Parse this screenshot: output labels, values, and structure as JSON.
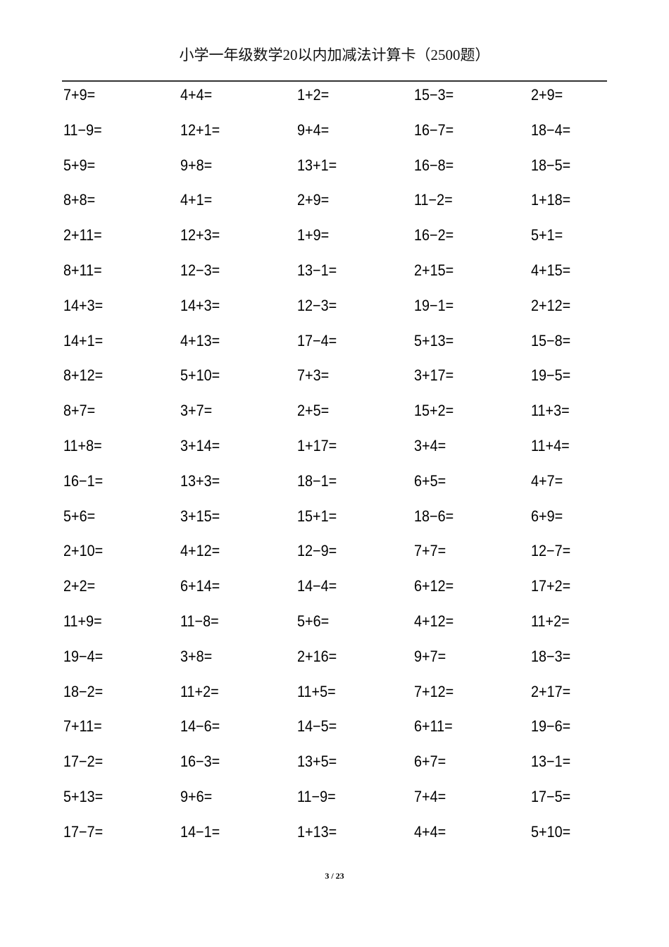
{
  "document": {
    "title": "小学一年级数学20以内加减法计算卡（2500题）",
    "page_indicator": "3 / 23"
  },
  "problems": [
    [
      "7+9=",
      "4+4=",
      "1+2=",
      "15−3=",
      "2+9="
    ],
    [
      "11−9=",
      "12+1=",
      "9+4=",
      "16−7=",
      "18−4="
    ],
    [
      "5+9=",
      "9+8=",
      "13+1=",
      "16−8=",
      "18−5="
    ],
    [
      "8+8=",
      "4+1=",
      "2+9=",
      "11−2=",
      "1+18="
    ],
    [
      "2+11=",
      "12+3=",
      "1+9=",
      "16−2=",
      "5+1="
    ],
    [
      "8+11=",
      "12−3=",
      "13−1=",
      "2+15=",
      "4+15="
    ],
    [
      "14+3=",
      "14+3=",
      "12−3=",
      "19−1=",
      "2+12="
    ],
    [
      "14+1=",
      "4+13=",
      "17−4=",
      "5+13=",
      "15−8="
    ],
    [
      "8+12=",
      "5+10=",
      "7+3=",
      "3+17=",
      "19−5="
    ],
    [
      "8+7=",
      "3+7=",
      "2+5=",
      "15+2=",
      "11+3="
    ],
    [
      "11+8=",
      "3+14=",
      "1+17=",
      "3+4=",
      "11+4="
    ],
    [
      "16−1=",
      "13+3=",
      "18−1=",
      "6+5=",
      "4+7="
    ],
    [
      "5+6=",
      "3+15=",
      "15+1=",
      "18−6=",
      "6+9="
    ],
    [
      "2+10=",
      "4+12=",
      "12−9=",
      "7+7=",
      "12−7="
    ],
    [
      "2+2=",
      "6+14=",
      "14−4=",
      "6+12=",
      "17+2="
    ],
    [
      "11+9=",
      "11−8=",
      "5+6=",
      "4+12=",
      "11+2="
    ],
    [
      "19−4=",
      "3+8=",
      "2+16=",
      "9+7=",
      "18−3="
    ],
    [
      "18−2=",
      "11+2=",
      "11+5=",
      "7+12=",
      "2+17="
    ],
    [
      "7+11=",
      "14−6=",
      "14−5=",
      "6+11=",
      "19−6="
    ],
    [
      "17−2=",
      "16−3=",
      "13+5=",
      "6+7=",
      "13−1="
    ],
    [
      "5+13=",
      "9+6=",
      "11−9=",
      "7+4=",
      "17−5="
    ],
    [
      "17−7=",
      "14−1=",
      "1+13=",
      "4+4=",
      "5+10="
    ]
  ]
}
